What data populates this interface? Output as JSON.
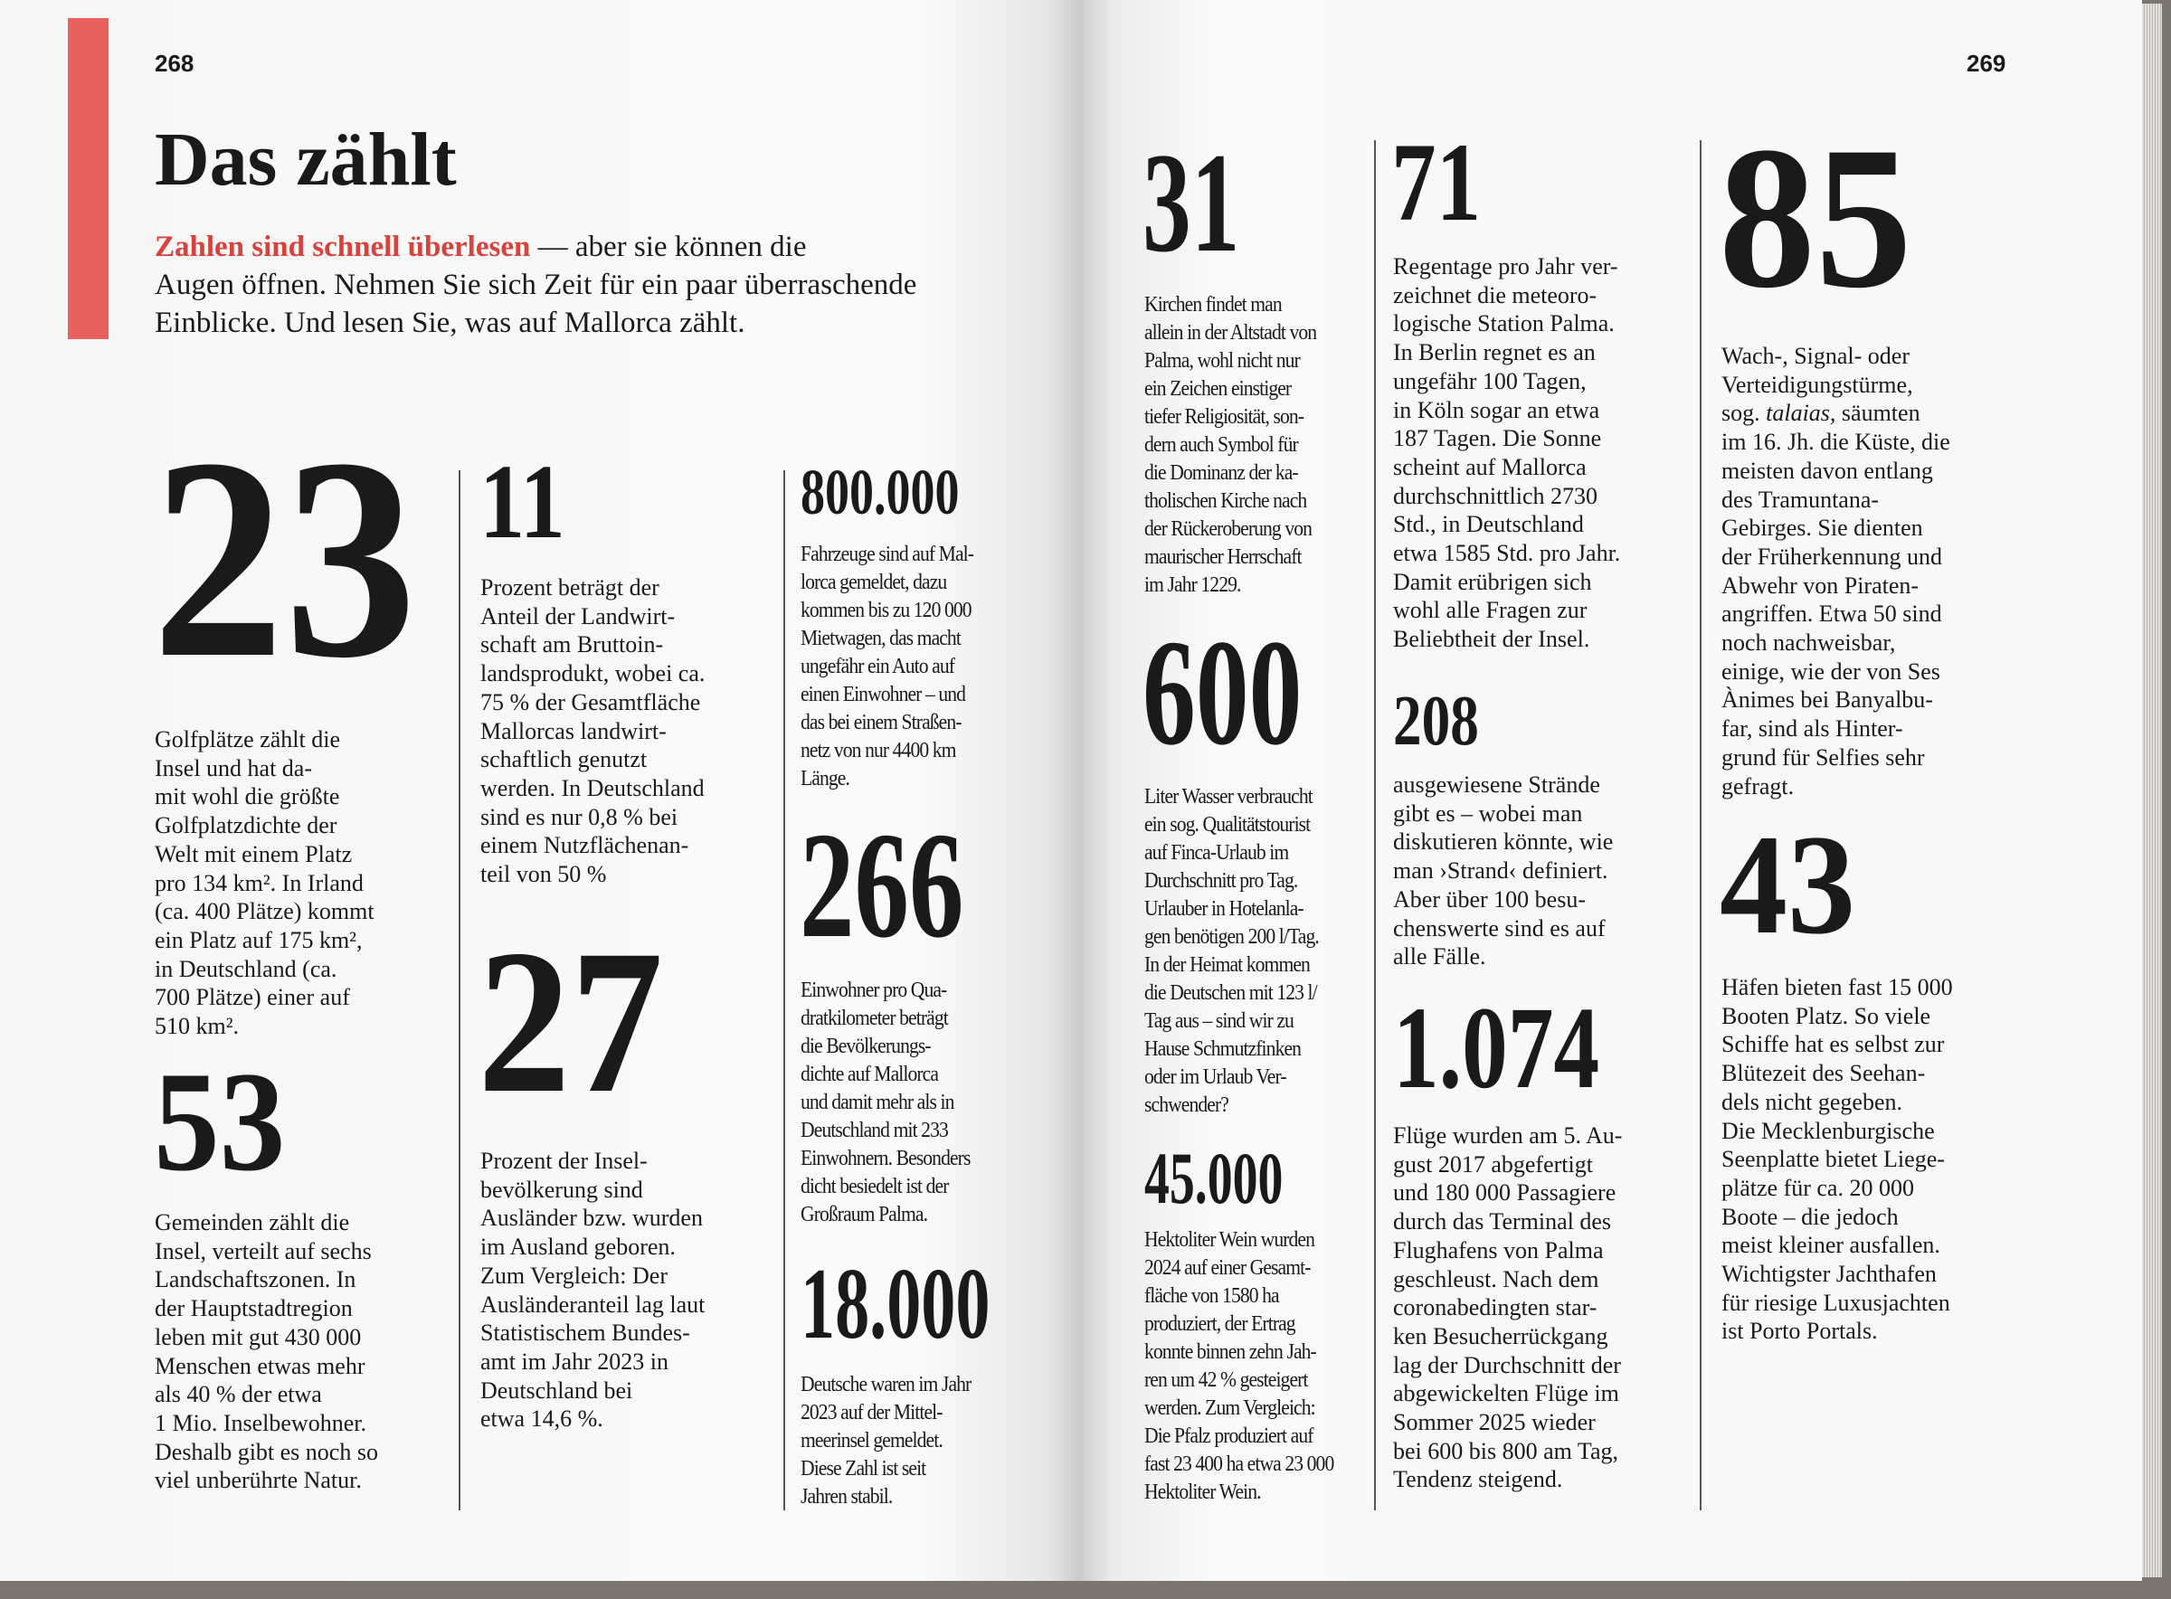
{
  "left_page": {
    "page_number": "268",
    "title": "Das zählt",
    "intro_highlight": "Zahlen sind schnell überlesen",
    "intro_rest": " — aber sie können die\nAugen öffnen. Nehmen Sie sich Zeit für ein paar überraschende\nEinblicke. Und lesen Sie, was auf Mallorca zählt.",
    "facts": [
      {
        "number": "23",
        "text": "Golfplätze zählt die\nInsel und hat da-\nmit wohl die größte\nGolfplatzdichte der\nWelt mit einem Platz\npro 134 km². In Irland\n(ca. 400 Plätze) kommt\nein Platz auf 175 km²,\nin Deutschland (ca.\n700 Plätze) einer auf\n510 km²."
      },
      {
        "number": "53",
        "text": "Gemeinden zählt die\nInsel, verteilt auf sechs\nLandschaftszonen. In\nder Hauptstadtregion\nleben mit gut 430 000\nMenschen etwas mehr\nals 40 % der etwa\n1 Mio. Inselbewohner.\nDeshalb gibt es noch so\nviel unberührte Natur."
      },
      {
        "number": "11",
        "text": "Prozent beträgt der\nAnteil der Landwirt-\nschaft am Bruttoin-\nlandsprodukt, wobei ca.\n75 % der Gesamtfläche\nMallorcas landwirt-\nschaftlich genutzt\nwerden. In Deutschland\nsind es nur 0,8 % bei\neinem Nutzflächenan-\nteil von 50 %"
      },
      {
        "number": "27",
        "text": "Prozent der Insel-\nbevölkerung sind\nAusländer bzw. wurden\nim Ausland geboren.\nZum Vergleich: Der\nAusländeranteil lag laut\nStatistischem Bundes-\namt im Jahr 2023 in\nDeutschland bei\netwa 14,6 %."
      },
      {
        "number": "800.000",
        "text": "Fahrzeuge sind auf Mal-\nlorca gemeldet, dazu\nkommen bis zu 120 000\nMietwagen, das macht\nungefähr ein Auto auf\neinen Einwohner – und\ndas bei einem Straßen-\nnetz von nur 4400 km\nLänge."
      },
      {
        "number": "266",
        "text": "Einwohner pro Qua-\ndratkilometer beträgt\ndie Bevölkerungs-\ndichte auf Mallorca\nund damit mehr als in\nDeutschland mit 233\nEinwohnern. Besonders\ndicht besiedelt ist der\nGroßraum Palma."
      },
      {
        "number": "18.000",
        "text": "Deutsche waren im Jahr\n2023 auf der Mittel-\nmeerinsel gemeldet.\nDiese Zahl ist seit\nJahren stabil."
      }
    ]
  },
  "right_page": {
    "page_number": "269",
    "facts": [
      {
        "number": "31",
        "text": "Kirchen findet man\nallein in der Altstadt von\nPalma, wohl nicht nur\nein Zeichen einstiger\ntiefer Religiosität, son-\ndern auch Symbol für\ndie Dominanz der ka-\ntholischen Kirche nach\nder Rückeroberung von\nmaurischer Herrschaft\nim Jahr 1229."
      },
      {
        "number": "600",
        "text": "Liter Wasser verbraucht\nein sog. Qualitätstourist\nauf Finca-Urlaub im\nDurchschnitt pro Tag.\nUrlauber in Hotelanla-\ngen benötigen 200 l/Tag.\nIn der Heimat kommen\ndie Deutschen mit 123 l/\nTag aus – sind wir zu\nHause Schmutzfinken\noder im Urlaub Ver-\nschwender?"
      },
      {
        "number": "45.000",
        "text": "Hektoliter Wein wurden\n2024 auf einer Gesamt-\nfläche von 1580 ha\nproduziert, der Ertrag\nkonnte binnen zehn Jah-\nren um 42 % gesteigert\nwerden. Zum Vergleich:\nDie Pfalz produziert auf\nfast 23 400 ha etwa 23 000\nHektoliter Wein."
      },
      {
        "number": "71",
        "text": "Regentage pro Jahr ver-\nzeichnet die meteoro-\nlogische Station Palma.\nIn Berlin regnet es an\nungefähr 100 Tagen,\nin Köln sogar an etwa\n187 Tagen. Die Sonne\nscheint auf Mallorca\ndurchschnittlich 2730\nStd., in Deutschland\netwa 1585 Std. pro Jahr.\nDamit erübrigen sich\nwohl alle Fragen zur\nBeliebtheit der Insel."
      },
      {
        "number": "208",
        "text": "ausgewiesene Strände\ngibt es – wobei man\ndiskutieren könnte, wie\nman ›Strand‹ definiert.\nAber über 100 besu-\nchenswerte sind es auf\nalle Fälle."
      },
      {
        "number": "1.074",
        "text": "Flüge wurden am 5. Au-\ngust 2017 abgefertigt\nund 180 000 Passagiere\ndurch das Terminal des\nFlughafens von Palma\ngeschleust. Nach dem\ncoronabedingten star-\nken Besucherrückgang\nlag der Durchschnitt der\nabgewickelten Flüge im\nSommer 2025 wieder\nbei 600 bis 800 am Tag,\nTendenz steigend."
      },
      {
        "number": "85",
        "text_before_italic": "Wach-, Signal- oder\nVerteidigungstürme,\nsog. ",
        "italic": "talaias,",
        "text": " säumten\nim 16. Jh. die Küste, die\nmeisten davon entlang\ndes Tramuntana-\nGebirges. Sie dienten\nder Früherkennung und\nAbwehr von Piraten-\nangriffen. Etwa 50 sind\nnoch nachweisbar,\neinige, wie der von Ses\nÀnimes bei Banyalbu-\nfar, sind als Hinter-\ngrund für Selfies sehr\ngefragt."
      },
      {
        "number": "43",
        "text": "Häfen bieten fast 15 000\nBooten Platz. So viele\nSchiffe hat es selbst zur\nBlütezeit des Seehan-\ndels nicht gegeben.\nDie Mecklenburgische\nSeenplatte bietet Liege-\nplätze für ca. 20 000\nBoote – die jedoch\nmeist kleiner ausfallen.\nWichtigster Jachthafen\nfür riesige Luxusjachten\nist Porto Portals."
      }
    ]
  },
  "colors": {
    "accent": "#e8605c",
    "highlight_text": "#d8413c",
    "background": "#7c746e",
    "paper": "#f8f8f7"
  }
}
